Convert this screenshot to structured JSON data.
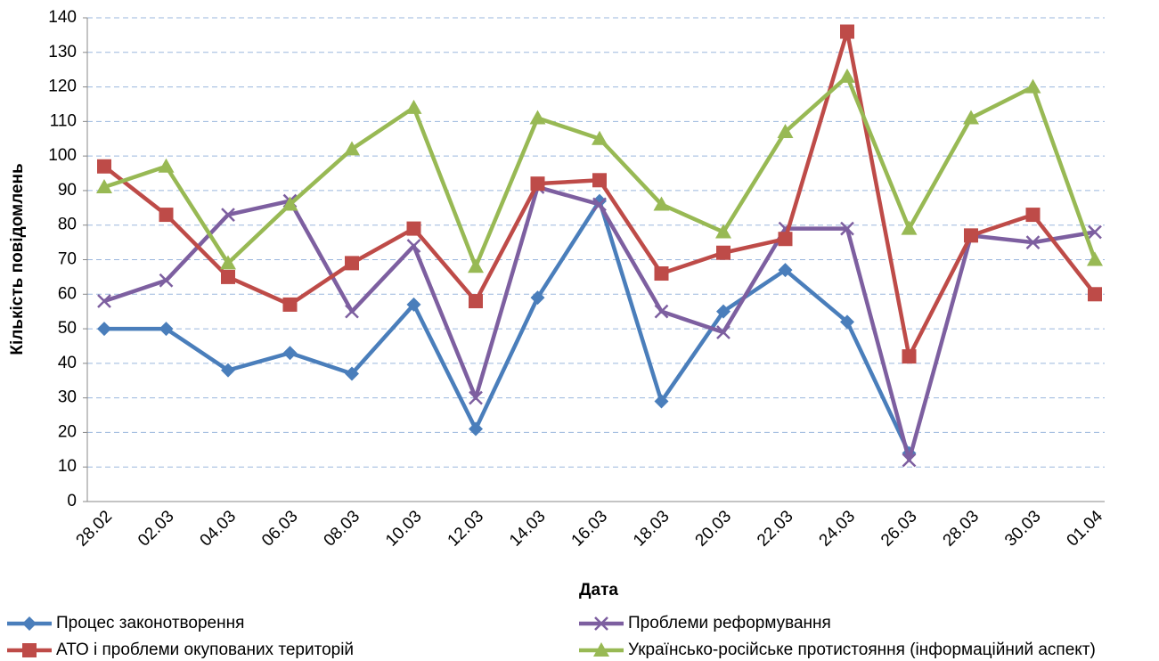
{
  "chart_data": {
    "type": "line",
    "x_label": "Дата",
    "y_label": "Кількість повідомлень",
    "categories": [
      "28.02",
      "02.03",
      "04.03",
      "06.03",
      "08.03",
      "10.03",
      "12.03",
      "14.03",
      "16.03",
      "18.03",
      "20.03",
      "22.03",
      "24.03",
      "26.03",
      "28.03",
      "30.03",
      "01.04"
    ],
    "series": [
      {
        "name": "Процес законотворення",
        "color": "#4a7ebb",
        "marker": "diamond",
        "values": [
          50,
          50,
          38,
          43,
          37,
          57,
          21,
          59,
          87,
          29,
          55,
          67,
          52,
          14,
          null,
          null,
          null
        ]
      },
      {
        "name": "Проблеми реформування",
        "color": "#7d5fa0",
        "marker": "x",
        "values": [
          58,
          64,
          83,
          87,
          55,
          74,
          30,
          91,
          86,
          55,
          49,
          79,
          79,
          12,
          77,
          75,
          78
        ]
      },
      {
        "name": "АТО і проблеми окупованих територій",
        "color": "#be4b48",
        "marker": "square",
        "values": [
          97,
          83,
          65,
          57,
          69,
          79,
          58,
          92,
          93,
          66,
          72,
          76,
          136,
          42,
          77,
          83,
          60
        ]
      },
      {
        "name": "Українсько-російське протистояння (інформаційний аспект)",
        "color": "#98b954",
        "marker": "triangle",
        "values": [
          91,
          97,
          69,
          86,
          102,
          114,
          68,
          111,
          105,
          86,
          78,
          107,
          123,
          79,
          111,
          120,
          70
        ]
      }
    ],
    "ylim": [
      0,
      140
    ],
    "yticks": [
      0,
      10,
      20,
      30,
      40,
      50,
      60,
      70,
      80,
      90,
      100,
      110,
      120,
      130,
      140
    ],
    "grid": true
  }
}
